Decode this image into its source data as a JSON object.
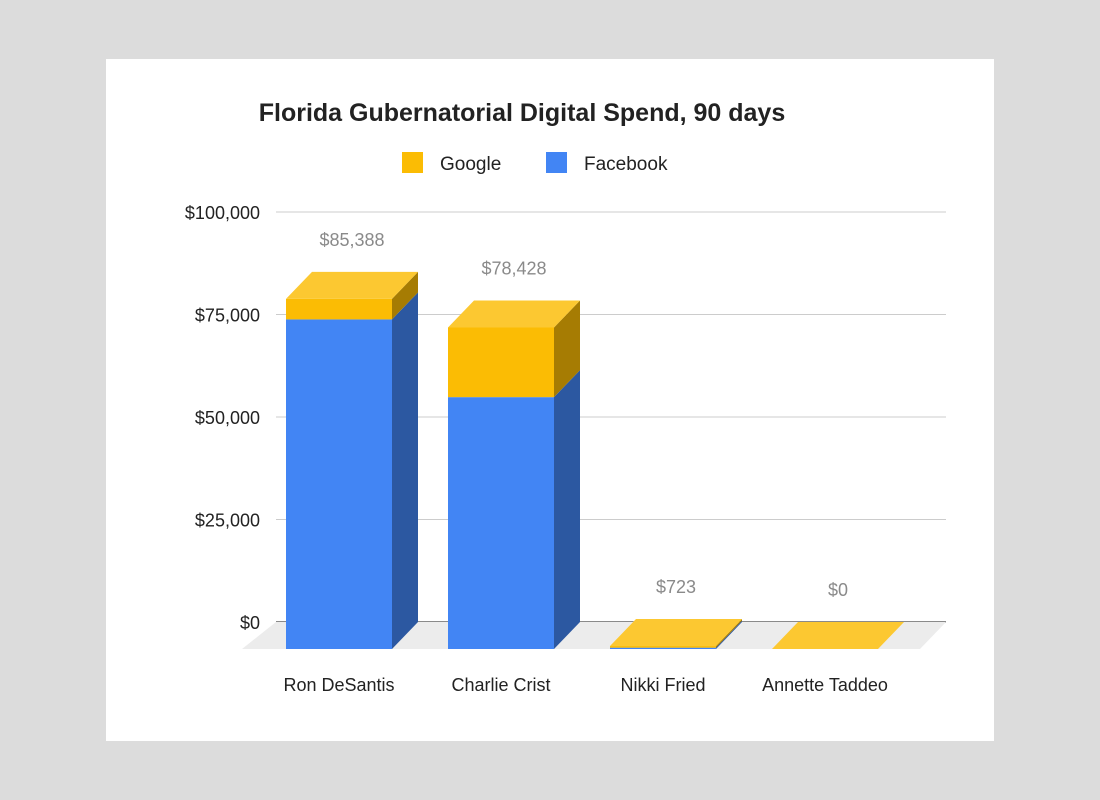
{
  "chart_data": {
    "type": "bar",
    "stacked": true,
    "three_d": true,
    "title": "Florida Gubernatorial Digital Spend, 90 days",
    "xlabel": "",
    "ylabel": "",
    "categories": [
      "Ron DeSantis",
      "Charlie Crist",
      "Nikki Fried",
      "Annette Taddeo"
    ],
    "series": [
      {
        "name": "Facebook",
        "values": [
          80388,
          61428,
          323,
          0
        ],
        "color": "#4285f4"
      },
      {
        "name": "Google",
        "values": [
          5000,
          17000,
          400,
          0
        ],
        "color": "#fbbc04"
      }
    ],
    "totals": [
      "$85,388",
      "$78,428",
      "$723",
      "$0"
    ],
    "legend_order": [
      "Google",
      "Facebook"
    ],
    "legend_position": "top",
    "ylim": [
      0,
      100000
    ],
    "yticks": [
      0,
      25000,
      50000,
      75000,
      100000
    ],
    "ytick_labels": [
      "$0",
      "$25,000",
      "$50,000",
      "$75,000",
      "$100,000"
    ],
    "grid": true
  }
}
